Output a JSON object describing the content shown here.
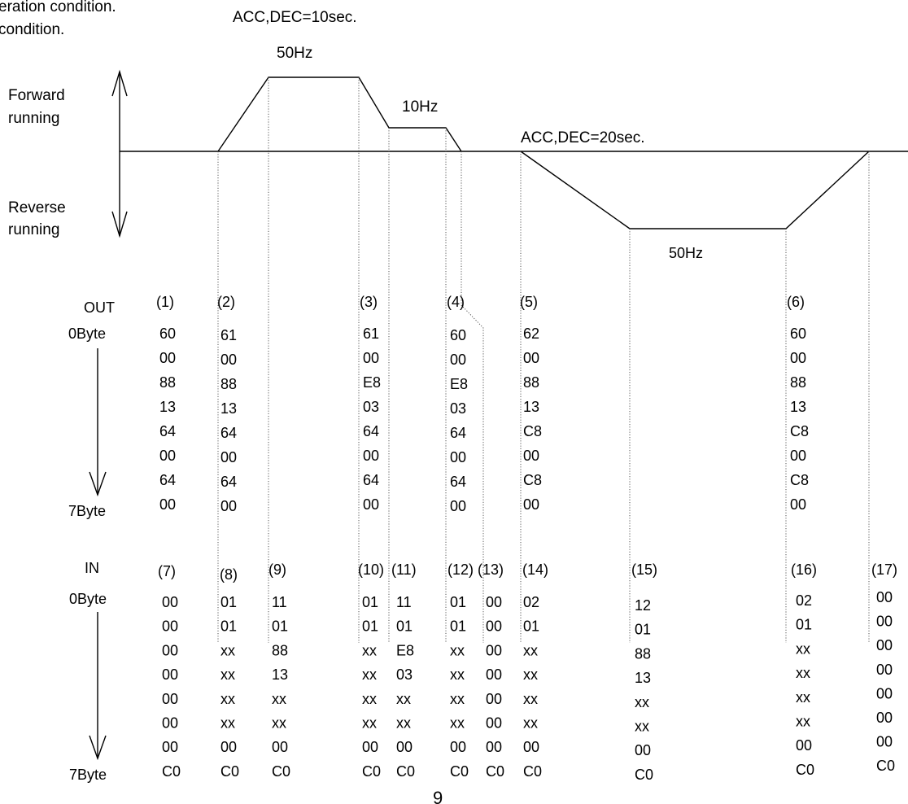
{
  "annotations": {
    "top_left_line1": "eration condition.",
    "top_left_line2": "condition.",
    "acc_dec_1": "ACC,DEC=10sec.",
    "acc_dec_2": "ACC,DEC=20sec.",
    "freq_fwd_high": "50Hz",
    "freq_fwd_low": "10Hz",
    "freq_rev": "50Hz"
  },
  "axis": {
    "forward_1": "Forward",
    "forward_2": "running",
    "reverse_1": "Reverse",
    "reverse_2": "running"
  },
  "out_table": {
    "label": "OUT",
    "byte_first": "0Byte",
    "byte_last": "7Byte",
    "columns": [
      {
        "id": "(1)",
        "bytes": [
          "60",
          "00",
          "88",
          "13",
          "64",
          "00",
          "64",
          "00"
        ]
      },
      {
        "id": "(2)",
        "bytes": [
          "61",
          "00",
          "88",
          "13",
          "64",
          "00",
          "64",
          "00"
        ]
      },
      {
        "id": "(3)",
        "bytes": [
          "61",
          "00",
          "E8",
          "03",
          "64",
          "00",
          "64",
          "00"
        ]
      },
      {
        "id": "(4)",
        "bytes": [
          "60",
          "00",
          "E8",
          "03",
          "64",
          "00",
          "64",
          "00"
        ]
      },
      {
        "id": "(5)",
        "bytes": [
          "62",
          "00",
          "88",
          "13",
          "C8",
          "00",
          "C8",
          "00"
        ]
      },
      {
        "id": "(6)",
        "bytes": [
          "60",
          "00",
          "88",
          "13",
          "C8",
          "00",
          "C8",
          "00"
        ]
      }
    ]
  },
  "in_table": {
    "label": "IN",
    "byte_first": "0Byte",
    "byte_last": "7Byte",
    "columns": [
      {
        "id": "(7)",
        "bytes": [
          "00",
          "00",
          "00",
          "00",
          "00",
          "00",
          "00",
          "C0"
        ]
      },
      {
        "id": "(8)",
        "bytes": [
          "01",
          "01",
          "xx",
          "xx",
          "xx",
          "xx",
          "00",
          "C0"
        ]
      },
      {
        "id": "(9)",
        "bytes": [
          "11",
          "01",
          "88",
          "13",
          "xx",
          "xx",
          "00",
          "C0"
        ]
      },
      {
        "id": "(10)",
        "bytes": [
          "01",
          "01",
          "xx",
          "xx",
          "xx",
          "xx",
          "00",
          "C0"
        ]
      },
      {
        "id": "(11)",
        "bytes": [
          "11",
          "01",
          "E8",
          "03",
          "xx",
          "xx",
          "00",
          "C0"
        ]
      },
      {
        "id": "(12)",
        "bytes": [
          "01",
          "01",
          "xx",
          "xx",
          "xx",
          "xx",
          "00",
          "C0"
        ]
      },
      {
        "id": "(13)",
        "bytes": [
          "00",
          "00",
          "00",
          "00",
          "00",
          "00",
          "00",
          "C0"
        ]
      },
      {
        "id": "(14)",
        "bytes": [
          "02",
          "01",
          "xx",
          "xx",
          "xx",
          "xx",
          "00",
          "C0"
        ]
      },
      {
        "id": "(15)",
        "bytes": [
          "12",
          "01",
          "88",
          "13",
          "xx",
          "xx",
          "00",
          "C0"
        ]
      },
      {
        "id": "(16)",
        "bytes": [
          "02",
          "01",
          "xx",
          "xx",
          "xx",
          "xx",
          "00",
          "C0"
        ]
      },
      {
        "id": "(17)",
        "bytes": [
          "00",
          "00",
          "00",
          "00",
          "00",
          "00",
          "00",
          "C0"
        ]
      }
    ]
  },
  "page_number": "9"
}
